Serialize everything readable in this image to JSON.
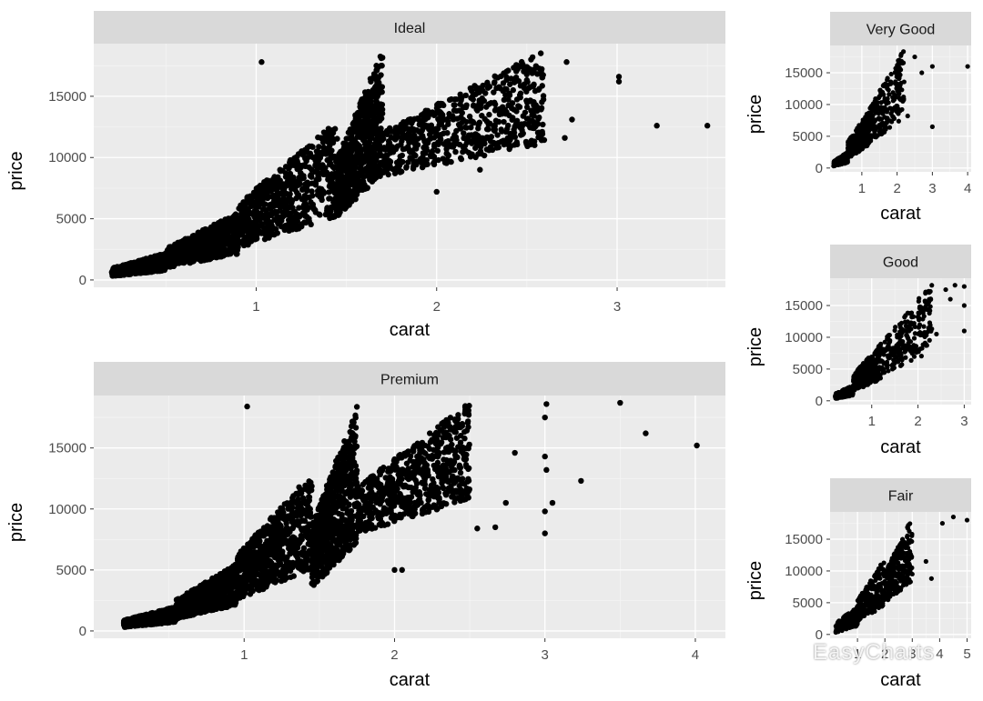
{
  "watermark": {
    "text": "EasyCharts",
    "icon": "wechat-logo-icon"
  },
  "chart_data": [
    {
      "type": "scatter",
      "title": "Ideal",
      "xlabel": "carat",
      "ylabel": "price",
      "xlim": [
        0.1,
        3.6
      ],
      "ylim": [
        -600,
        19300
      ],
      "xticks": [
        1,
        2,
        3
      ],
      "yticks": [
        0,
        5000,
        10000,
        15000
      ],
      "grid": true,
      "legend": "none",
      "point_color": "#000000",
      "panel_background": "#ebebeb",
      "band_data": [
        {
          "x": [
            0.2,
            0.5
          ],
          "y": [
            300,
            2200
          ]
        },
        {
          "x": [
            0.5,
            0.9
          ],
          "y": [
            1000,
            5500
          ]
        },
        {
          "x": [
            0.9,
            1.45
          ],
          "y": [
            2600,
            13000
          ]
        },
        {
          "x": [
            1.45,
            1.7
          ],
          "y": [
            5200,
            18800
          ]
        },
        {
          "x": [
            1.7,
            2.6
          ],
          "y": [
            8500,
            18800
          ]
        }
      ],
      "outliers": [
        {
          "x": 2.72,
          "y": 17800
        },
        {
          "x": 2.75,
          "y": 13100
        },
        {
          "x": 2.71,
          "y": 11600
        },
        {
          "x": 3.01,
          "y": 16600
        },
        {
          "x": 3.01,
          "y": 16200
        },
        {
          "x": 3.22,
          "y": 12600
        },
        {
          "x": 3.5,
          "y": 12600
        },
        {
          "x": 2.5,
          "y": 17400
        },
        {
          "x": 2.4,
          "y": 11200
        },
        {
          "x": 2.24,
          "y": 9000
        },
        {
          "x": 2.0,
          "y": 7200
        },
        {
          "x": 1.03,
          "y": 17800
        }
      ]
    },
    {
      "type": "scatter",
      "title": "Premium",
      "xlabel": "carat",
      "ylabel": "price",
      "xlim": [
        0.0,
        4.2
      ],
      "ylim": [
        -600,
        19300
      ],
      "xticks": [
        1,
        2,
        3,
        4
      ],
      "yticks": [
        0,
        5000,
        10000,
        15000
      ],
      "grid": true,
      "legend": "none",
      "point_color": "#000000",
      "panel_background": "#ebebeb",
      "band_data": [
        {
          "x": [
            0.2,
            0.55
          ],
          "y": [
            300,
            2000
          ]
        },
        {
          "x": [
            0.55,
            0.95
          ],
          "y": [
            1000,
            5500
          ]
        },
        {
          "x": [
            0.95,
            1.45
          ],
          "y": [
            2500,
            13000
          ]
        },
        {
          "x": [
            1.45,
            1.75
          ],
          "y": [
            3500,
            18500
          ]
        },
        {
          "x": [
            1.75,
            2.5
          ],
          "y": [
            8000,
            18800
          ]
        }
      ],
      "outliers": [
        {
          "x": 3.01,
          "y": 18600
        },
        {
          "x": 3.0,
          "y": 17500
        },
        {
          "x": 3.0,
          "y": 14300
        },
        {
          "x": 3.01,
          "y": 13200
        },
        {
          "x": 3.05,
          "y": 10500
        },
        {
          "x": 3.0,
          "y": 9800
        },
        {
          "x": 3.0,
          "y": 8000
        },
        {
          "x": 3.24,
          "y": 12300
        },
        {
          "x": 3.5,
          "y": 18700
        },
        {
          "x": 3.67,
          "y": 16200
        },
        {
          "x": 4.01,
          "y": 15200
        },
        {
          "x": 2.8,
          "y": 14600
        },
        {
          "x": 2.74,
          "y": 10500
        },
        {
          "x": 2.67,
          "y": 8500
        },
        {
          "x": 2.0,
          "y": 5000
        },
        {
          "x": 2.05,
          "y": 5000
        },
        {
          "x": 1.02,
          "y": 18400
        },
        {
          "x": 2.55,
          "y": 8400
        }
      ]
    },
    {
      "type": "scatter",
      "title": "Very Good",
      "xlabel": "carat",
      "ylabel": "price",
      "xlim": [
        0.1,
        4.1
      ],
      "ylim": [
        -600,
        19300
      ],
      "xticks": [
        1,
        2,
        3,
        4
      ],
      "yticks": [
        0,
        5000,
        10000,
        15000
      ],
      "grid": true,
      "legend": "none",
      "point_color": "#000000",
      "panel_background": "#ebebeb",
      "band_data": [
        {
          "x": [
            0.2,
            0.6
          ],
          "y": [
            300,
            2500
          ]
        },
        {
          "x": [
            0.6,
            1.2
          ],
          "y": [
            1500,
            9000
          ]
        },
        {
          "x": [
            1.2,
            2.2
          ],
          "y": [
            4000,
            18800
          ]
        }
      ],
      "outliers": [
        {
          "x": 2.5,
          "y": 17500
        },
        {
          "x": 3.0,
          "y": 16000
        },
        {
          "x": 3.0,
          "y": 6500
        },
        {
          "x": 4.0,
          "y": 16000
        },
        {
          "x": 2.7,
          "y": 15000
        },
        {
          "x": 2.3,
          "y": 8200
        }
      ]
    },
    {
      "type": "scatter",
      "title": "Good",
      "xlabel": "carat",
      "ylabel": "price",
      "xlim": [
        0.1,
        3.15
      ],
      "ylim": [
        -600,
        19300
      ],
      "xticks": [
        1,
        2,
        3
      ],
      "yticks": [
        0,
        5000,
        10000,
        15000
      ],
      "grid": true,
      "legend": "none",
      "point_color": "#000000",
      "panel_background": "#ebebeb",
      "band_data": [
        {
          "x": [
            0.2,
            0.6
          ],
          "y": [
            300,
            2500
          ]
        },
        {
          "x": [
            0.6,
            1.2
          ],
          "y": [
            1500,
            9000
          ]
        },
        {
          "x": [
            1.2,
            2.3
          ],
          "y": [
            4000,
            18500
          ]
        }
      ],
      "outliers": [
        {
          "x": 2.8,
          "y": 18200
        },
        {
          "x": 3.0,
          "y": 18000
        },
        {
          "x": 3.0,
          "y": 15000
        },
        {
          "x": 3.0,
          "y": 11000
        },
        {
          "x": 2.6,
          "y": 17500
        },
        {
          "x": 2.7,
          "y": 16000
        },
        {
          "x": 2.4,
          "y": 10500
        }
      ]
    },
    {
      "type": "scatter",
      "title": "Fair",
      "xlabel": "carat",
      "ylabel": "price",
      "xlim": [
        0.0,
        5.15
      ],
      "ylim": [
        -600,
        19300
      ],
      "xticks": [
        1,
        2,
        3,
        4,
        5
      ],
      "yticks": [
        0,
        5000,
        10000,
        15000
      ],
      "grid": true,
      "legend": "none",
      "point_color": "#000000",
      "panel_background": "#ebebeb",
      "band_data": [
        {
          "x": [
            0.2,
            1.0
          ],
          "y": [
            300,
            4500
          ]
        },
        {
          "x": [
            1.0,
            2.0
          ],
          "y": [
            2000,
            12000
          ]
        },
        {
          "x": [
            2.0,
            3.0
          ],
          "y": [
            5000,
            18500
          ]
        }
      ],
      "outliers": [
        {
          "x": 4.5,
          "y": 18500
        },
        {
          "x": 5.0,
          "y": 18000
        },
        {
          "x": 4.1,
          "y": 17500
        },
        {
          "x": 3.5,
          "y": 11500
        },
        {
          "x": 3.0,
          "y": 9500
        },
        {
          "x": 3.7,
          "y": 8800
        }
      ]
    }
  ]
}
